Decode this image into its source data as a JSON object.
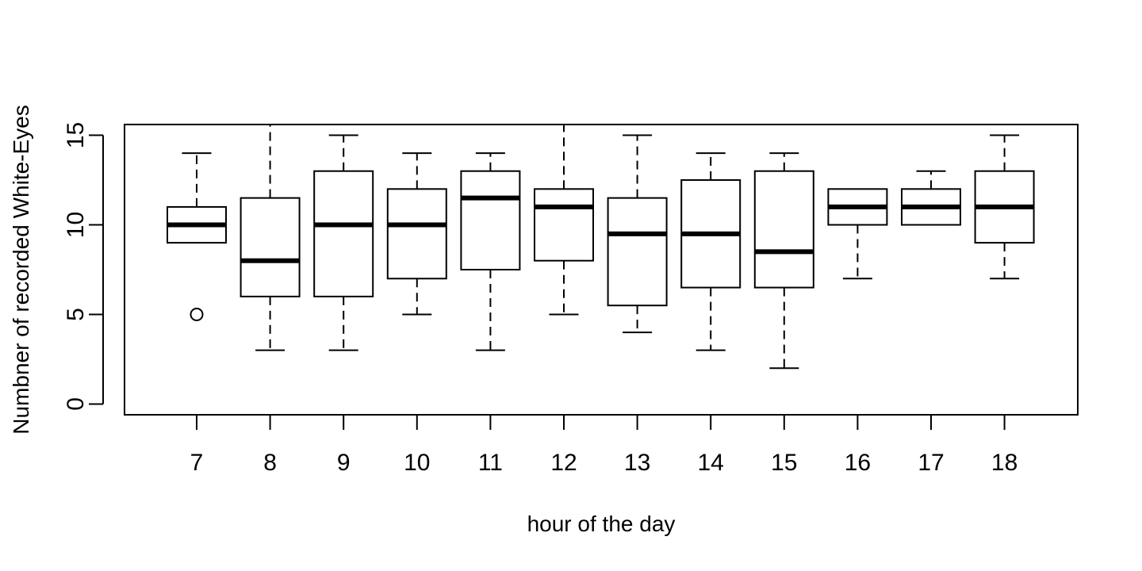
{
  "chart_data": {
    "type": "boxplot",
    "title": "",
    "xlabel": "hour of the day",
    "ylabel": "Numbner of recorded White-Eyes",
    "categories": [
      "7",
      "8",
      "9",
      "10",
      "11",
      "12",
      "13",
      "14",
      "15",
      "16",
      "17",
      "18"
    ],
    "y_ticks": [
      0,
      5,
      10,
      15
    ],
    "ylim": [
      -0.6,
      15.6
    ],
    "boxes": [
      {
        "x": "7",
        "whisker_low": 9,
        "q1": 9,
        "median": 10,
        "q3": 11,
        "whisker_high": 14,
        "outliers": [
          5
        ]
      },
      {
        "x": "8",
        "whisker_low": 3,
        "q1": 6,
        "median": 8,
        "q3": 11.5,
        "whisker_high": 16,
        "outliers": []
      },
      {
        "x": "9",
        "whisker_low": 3,
        "q1": 6,
        "median": 10,
        "q3": 13,
        "whisker_high": 15,
        "outliers": []
      },
      {
        "x": "10",
        "whisker_low": 5,
        "q1": 7,
        "median": 10,
        "q3": 12,
        "whisker_high": 14,
        "outliers": []
      },
      {
        "x": "11",
        "whisker_low": 3,
        "q1": 7.5,
        "median": 11.5,
        "q3": 13,
        "whisker_high": 14,
        "outliers": []
      },
      {
        "x": "12",
        "whisker_low": 5,
        "q1": 8,
        "median": 11,
        "q3": 12,
        "whisker_high": 16,
        "outliers": []
      },
      {
        "x": "13",
        "whisker_low": 4,
        "q1": 5.5,
        "median": 9.5,
        "q3": 11.5,
        "whisker_high": 15,
        "outliers": []
      },
      {
        "x": "14",
        "whisker_low": 3,
        "q1": 6.5,
        "median": 9.5,
        "q3": 12.5,
        "whisker_high": 14,
        "outliers": []
      },
      {
        "x": "15",
        "whisker_low": 2,
        "q1": 6.5,
        "median": 8.5,
        "q3": 13,
        "whisker_high": 14,
        "outliers": []
      },
      {
        "x": "16",
        "whisker_low": 7,
        "q1": 10,
        "median": 11,
        "q3": 12,
        "whisker_high": 12,
        "outliers": []
      },
      {
        "x": "17",
        "whisker_low": 10,
        "q1": 10,
        "median": 11,
        "q3": 12,
        "whisker_high": 13,
        "outliers": []
      },
      {
        "x": "18",
        "whisker_low": 7,
        "q1": 9,
        "median": 11,
        "q3": 13,
        "whisker_high": 15,
        "outliers": []
      }
    ],
    "grid": false,
    "legend": "none"
  }
}
